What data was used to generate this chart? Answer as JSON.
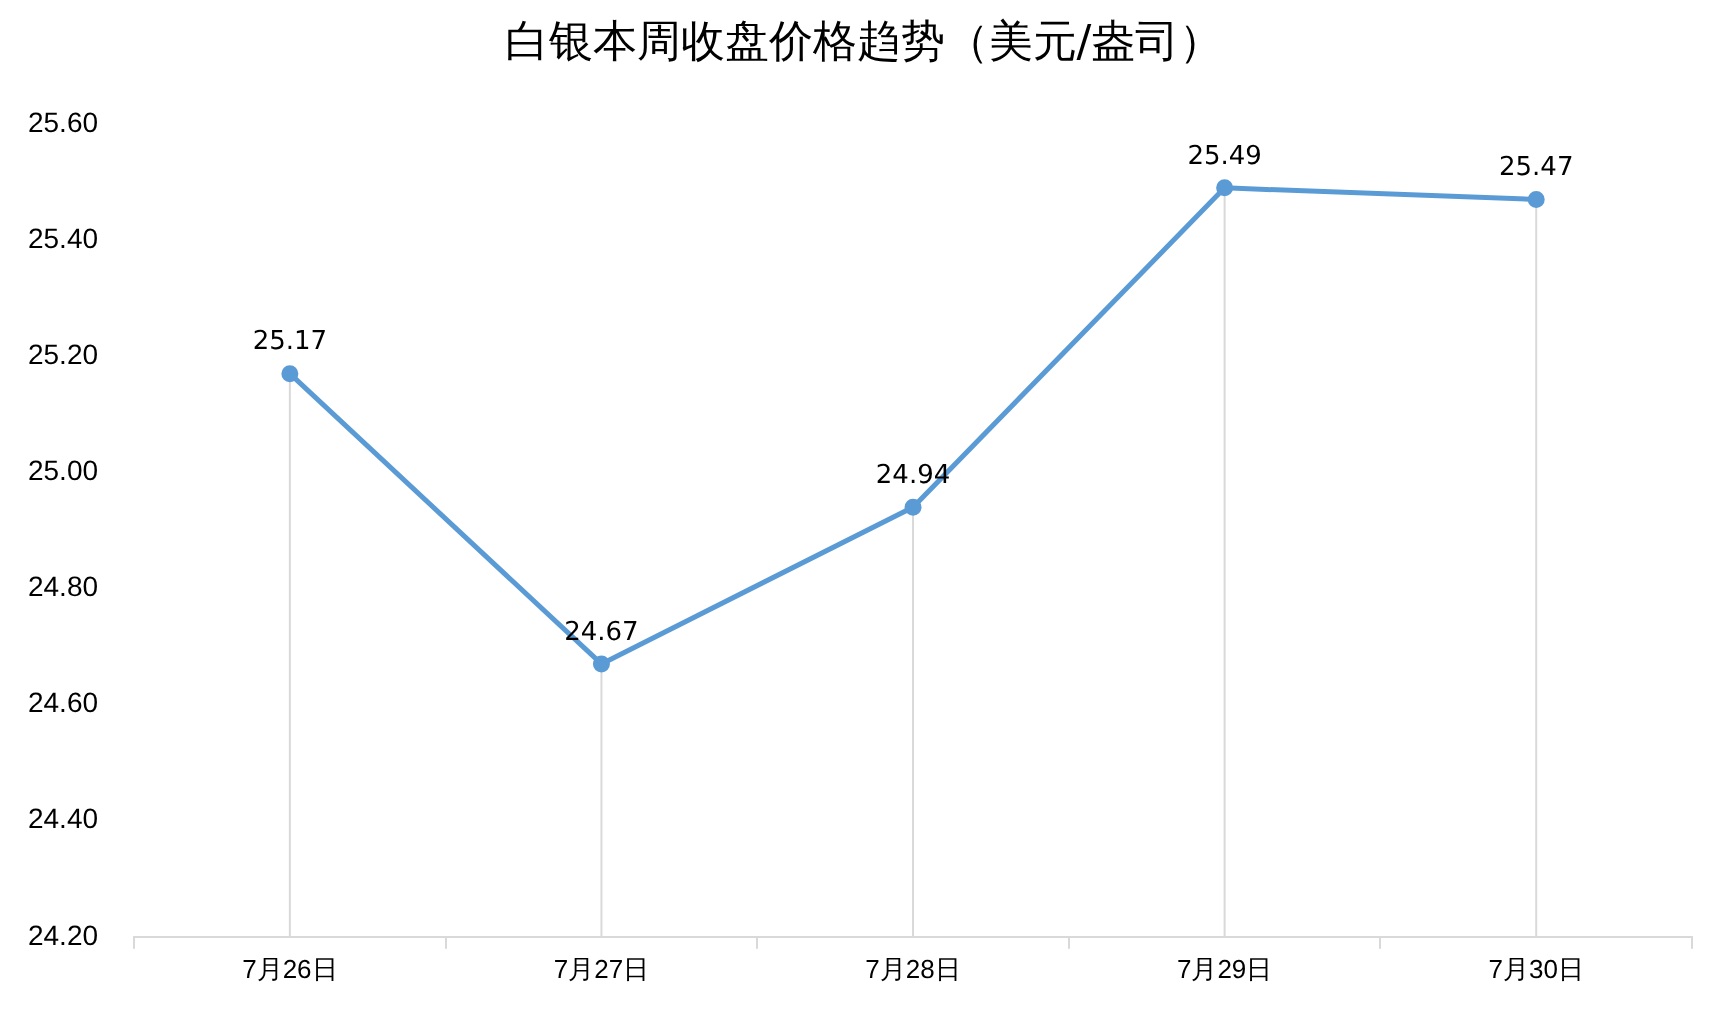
{
  "chart_data": {
    "type": "line",
    "title": "白银本周收盘价格趋势（美元/盎司）",
    "categories": [
      "7月26日",
      "7月27日",
      "7月28日",
      "7月29日",
      "7月30日"
    ],
    "series": [
      {
        "color": "#5b9bd5",
        "values": [
          25.17,
          24.67,
          24.94,
          25.49,
          25.47
        ]
      }
    ],
    "ylim": [
      24.2,
      25.6
    ],
    "yticks": [
      {
        "value": 24.2,
        "label": "24.20"
      },
      {
        "value": 24.4,
        "label": "24.40"
      },
      {
        "value": 24.6,
        "label": "24.60"
      },
      {
        "value": 24.8,
        "label": "24.80"
      },
      {
        "value": 25,
        "label": "25.00"
      },
      {
        "value": 25.2,
        "label": "25.20"
      },
      {
        "value": 25.4,
        "label": "25.40"
      },
      {
        "value": 25.6,
        "label": "25.60"
      }
    ],
    "grid": "x",
    "legend": false,
    "marker": "circle",
    "line_style": "solid",
    "data_labels": true
  }
}
